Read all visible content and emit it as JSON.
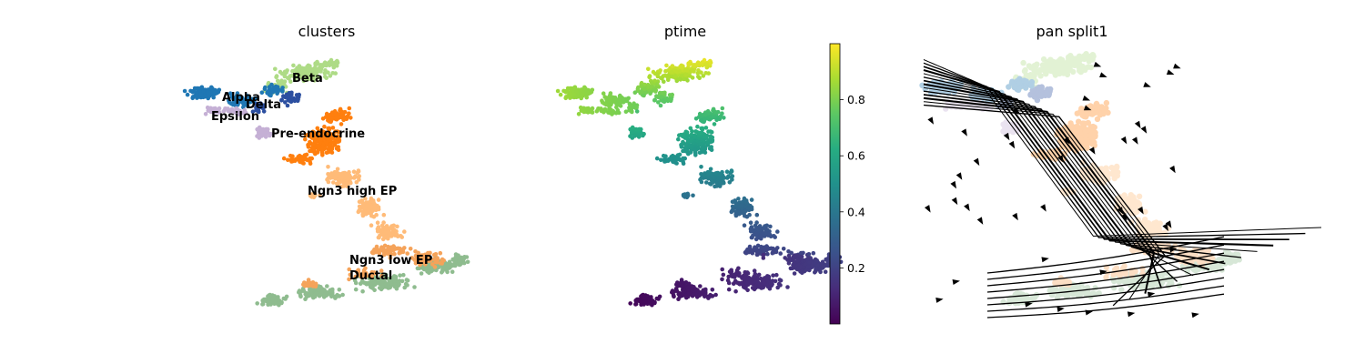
{
  "chart_data": [
    {
      "type": "scatter",
      "title": "clusters",
      "xlabel": "",
      "ylabel": "",
      "axes": "off",
      "categories": [
        "Alpha",
        "Beta",
        "Delta",
        "Epsilon",
        "Pre-endocrine",
        "Ngn3 high EP",
        "Ngn3 low EP",
        "Ductal"
      ],
      "colors": {
        "Alpha": "#1f77b4",
        "Beta": "#aedb86",
        "Delta": "#2c4fa0",
        "Epsilon": "#c5b0d5",
        "Pre-endocrine": "#ff7f0e",
        "Ngn3 high EP": "#ffbb78",
        "Ngn3 low EP": "#f5a35a",
        "Ductal": "#8fbc8f"
      },
      "labels_on_data": true
    },
    {
      "type": "scatter",
      "title": "ptime",
      "xlabel": "",
      "ylabel": "",
      "axes": "off",
      "colormap": "viridis",
      "colorbar": {
        "range": [
          0.0,
          1.0
        ],
        "ticks": [
          0.2,
          0.4,
          0.6,
          0.8
        ],
        "tick_labels": [
          "0.2",
          "0.4",
          "0.6",
          "0.8"
        ]
      }
    },
    {
      "type": "scatter",
      "title": "pan split1",
      "xlabel": "",
      "ylabel": "",
      "axes": "off",
      "overlay": "velocity streamlines",
      "streamline_color": "#000000"
    }
  ]
}
